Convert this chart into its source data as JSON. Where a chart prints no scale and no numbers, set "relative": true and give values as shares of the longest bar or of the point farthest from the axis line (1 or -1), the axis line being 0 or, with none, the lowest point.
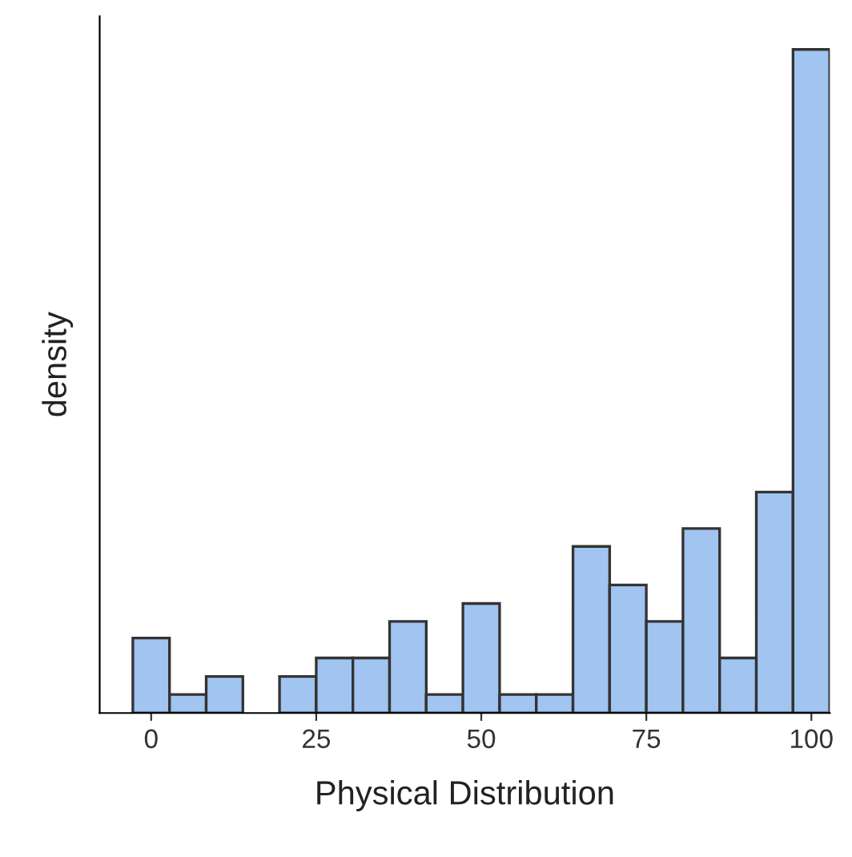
{
  "chart_data": {
    "type": "bar",
    "xlabel": "Physical Distribution",
    "ylabel": "density",
    "relative": true,
    "x": [
      0,
      5.56,
      11.11,
      16.67,
      22.22,
      27.78,
      33.33,
      38.89,
      44.44,
      50,
      55.56,
      61.11,
      66.67,
      72.22,
      77.78,
      83.33,
      88.89,
      94.44,
      100
    ],
    "values": [
      0.113,
      0.028,
      0.055,
      0,
      0.055,
      0.083,
      0.083,
      0.138,
      0.028,
      0.165,
      0.028,
      0.028,
      0.251,
      0.193,
      0.138,
      0.278,
      0.083,
      0.333,
      1
    ],
    "color": "#a1c4f0",
    "xlim": [
      -7.8,
      102.8
    ],
    "xticks": [
      0,
      25,
      50,
      75,
      100
    ],
    "tick_labels": "x",
    "grid": false
  }
}
